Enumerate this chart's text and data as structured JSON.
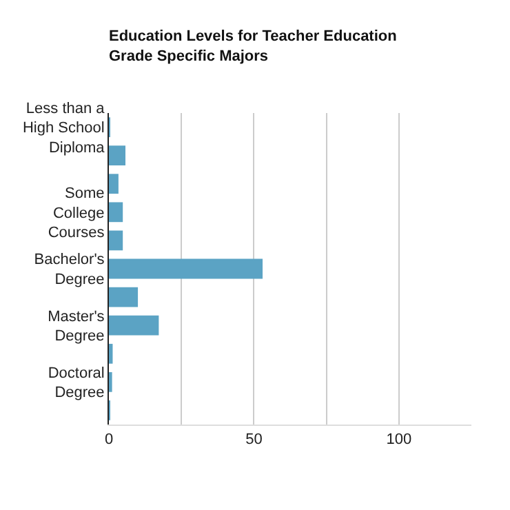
{
  "chart_data": {
    "type": "bar",
    "orientation": "horizontal",
    "title": "Education Levels for Teacher Education Grade Specific Majors",
    "categories": [
      "Less than a High School Diploma",
      null,
      null,
      "Some College Courses",
      null,
      "Bachelor's Degree",
      null,
      "Master's Degree",
      null,
      "Doctoral Degree",
      null
    ],
    "values": [
      0.4,
      5.7,
      3.3,
      4.8,
      4.8,
      53,
      10,
      17.2,
      1.3,
      1.1,
      0.3
    ],
    "color": "#5ba3c4",
    "xlim": [
      0,
      125
    ],
    "xticks": [
      0,
      {
        "value": 25,
        "label": null
      },
      50,
      {
        "value": 75,
        "label": null
      },
      100
    ],
    "grid": "x"
  }
}
